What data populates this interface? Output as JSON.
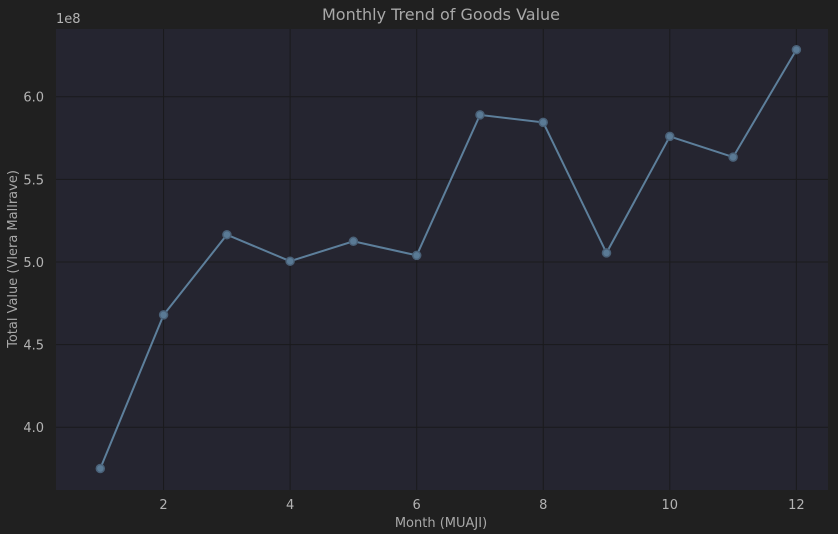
{
  "chart_data": {
    "type": "line",
    "title": "Monthly Trend of Goods Value",
    "xlabel": "Month (MUAJI)",
    "ylabel": "Total Value (Vlera Mallrave)",
    "y_multiplier": "1e8",
    "x": [
      1,
      2,
      3,
      4,
      5,
      6,
      7,
      8,
      9,
      10,
      11,
      12
    ],
    "series": [
      {
        "values": [
          375000000,
          468000000,
          516500000,
          500500000,
          512500000,
          504000000,
          589000000,
          584500000,
          505500000,
          576000000,
          563500000,
          628500000
        ]
      }
    ],
    "xlim": [
      0.3,
      12.5
    ],
    "ylim": [
      362000000,
      641000000
    ],
    "xticks": [
      2,
      4,
      6,
      8,
      10,
      12
    ],
    "xtick_labels": [
      "2",
      "4",
      "6",
      "8",
      "10",
      "12"
    ],
    "yticks": [
      400000000,
      450000000,
      500000000,
      550000000,
      600000000
    ],
    "ytick_labels": [
      "4.0",
      "4.5",
      "5.0",
      "5.5",
      "6.0"
    ],
    "grid": true,
    "colors": {
      "background": "#202020",
      "plot_area": "#252530",
      "line": "#5d7f9b",
      "marker_fill": "#5a7a95",
      "marker_edge": "#4a6178"
    }
  }
}
